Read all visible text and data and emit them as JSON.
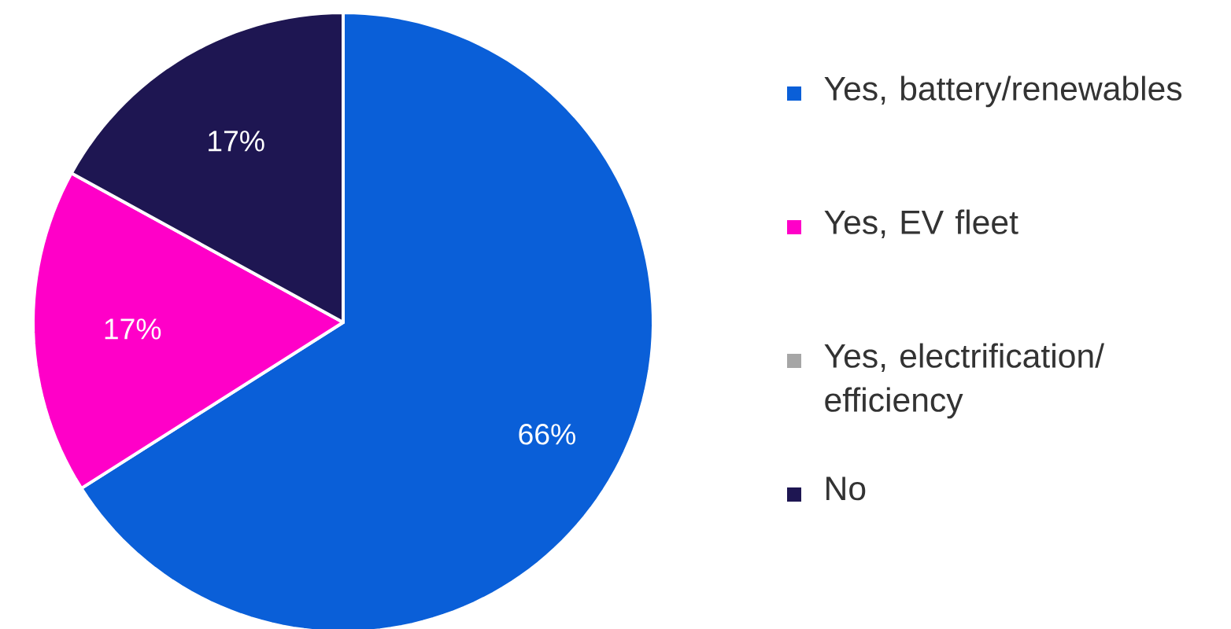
{
  "chart_data": {
    "type": "pie",
    "categories": [
      "Yes, battery/renewables",
      "Yes, EV fleet",
      "Yes, electrification/ efficiency",
      "No"
    ],
    "values": [
      66,
      17,
      0,
      17
    ],
    "value_labels": [
      "66%",
      "17%",
      null,
      "17%"
    ],
    "colors": [
      "#0a5fd8",
      "#ff00c8",
      "#a6a6a6",
      "#1e1652"
    ],
    "legend": "right"
  }
}
